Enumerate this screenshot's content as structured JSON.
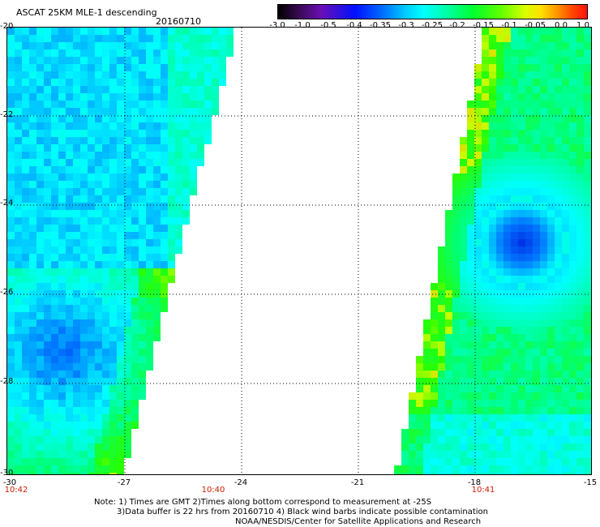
{
  "title": "ASCAT 25KM MLE-1 descending",
  "date": "20160710",
  "colorbar": {
    "labels": [
      "-3.0",
      "-1.0",
      "-0.5",
      "-0.4",
      "-0.35",
      "-0.3",
      "-0.25",
      "-0.2",
      "-0.15",
      "-0.1",
      "-0.05",
      "0.0",
      "1.0"
    ]
  },
  "axes": {
    "y_ticks": [
      "-20",
      "-22",
      "-24",
      "-26",
      "-28",
      "-30"
    ],
    "x_ticks": [
      "-30",
      "-27",
      "-24",
      "-21",
      "-18",
      "-15"
    ],
    "lat_range": [
      -30,
      -20
    ],
    "lon_range": [
      -30,
      -15
    ]
  },
  "times": [
    "10:42",
    "10:40",
    "10:41"
  ],
  "notes": {
    "line1": "Note: 1) Times are GMT 2)Times along bottom correspond to measurement at -25S",
    "line2": "3)Data buffer is 22 hrs from 20160710 4) Black wind barbs indicate possible contamination",
    "line3": "NOAA/NESDIS/Center for Satellite Applications and Research"
  },
  "colors": {
    "low": "#0020e0",
    "mid": "#00ffff",
    "high": "#00ff30",
    "time_label": "#cc1b00"
  }
}
